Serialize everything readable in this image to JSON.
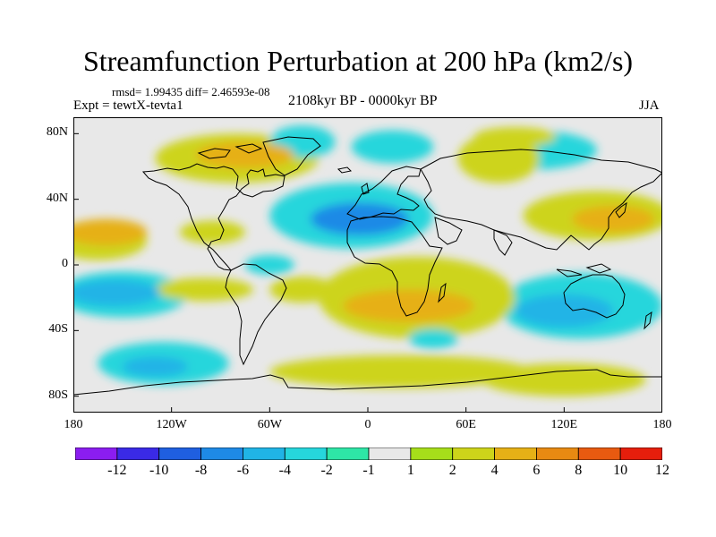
{
  "chart_data": {
    "type": "heatmap",
    "title": "Streamfunction Perturbation at 200 hPa (km2/s)",
    "stats": "rmsd= 1.99435 diff= 2.46593e-08",
    "experiment": "Expt = tewtX-tevta1",
    "period": "2108kyr BP - 0000kyr BP",
    "season": "JJA",
    "xlim": [
      -180,
      180
    ],
    "ylim": [
      -90,
      90
    ],
    "xticks": [
      {
        "value": -180,
        "label": "180"
      },
      {
        "value": -120,
        "label": "120W"
      },
      {
        "value": -60,
        "label": "60W"
      },
      {
        "value": 0,
        "label": "0"
      },
      {
        "value": 60,
        "label": "60E"
      },
      {
        "value": 120,
        "label": "120E"
      },
      {
        "value": 180,
        "label": "180"
      }
    ],
    "yticks": [
      {
        "value": 80,
        "label": "80N"
      },
      {
        "value": 40,
        "label": "40N"
      },
      {
        "value": 0,
        "label": "0"
      },
      {
        "value": -40,
        "label": "40S"
      },
      {
        "value": -80,
        "label": "80S"
      }
    ],
    "levels": [
      -12,
      -10,
      -8,
      -6,
      -4,
      -2,
      -1,
      1,
      2,
      4,
      6,
      8,
      10,
      12
    ],
    "level_labels": [
      "-12",
      "-10",
      "-8",
      "-6",
      "-4",
      "-2",
      "-1",
      "1",
      "2",
      "4",
      "6",
      "8",
      "10",
      "12"
    ],
    "colors": [
      "#8b1df0",
      "#3a2ae6",
      "#1f5fe0",
      "#1e8ae6",
      "#20b4e6",
      "#26d6dc",
      "#2ee6a6",
      "#e8e8e8",
      "#a6de1a",
      "#cdd41a",
      "#e6b016",
      "#e88a12",
      "#e85a10",
      "#e61e0c"
    ],
    "features": [
      {
        "lon": -160,
        "lat": 20,
        "rx": 25,
        "ry": 8,
        "value": 5
      },
      {
        "lon": -165,
        "lat": 15,
        "rx": 30,
        "ry": 12,
        "value": 2.5
      },
      {
        "lon": -155,
        "lat": -17,
        "rx": 28,
        "ry": 8,
        "value": -5
      },
      {
        "lon": -150,
        "lat": -18,
        "rx": 40,
        "ry": 14,
        "value": -2.5
      },
      {
        "lon": -125,
        "lat": -60,
        "rx": 40,
        "ry": 13,
        "value": -2.5
      },
      {
        "lon": -130,
        "lat": -62,
        "rx": 20,
        "ry": 6,
        "value": -5
      },
      {
        "lon": -80,
        "lat": 65,
        "rx": 50,
        "ry": 15,
        "value": 2.5
      },
      {
        "lon": -75,
        "lat": 67,
        "rx": 30,
        "ry": 8,
        "value": 5
      },
      {
        "lon": -95,
        "lat": 20,
        "rx": 20,
        "ry": 7,
        "value": 2.5
      },
      {
        "lon": -60,
        "lat": 0,
        "rx": 15,
        "ry": 6,
        "value": -2.5
      },
      {
        "lon": -100,
        "lat": -15,
        "rx": 30,
        "ry": 7,
        "value": 2.5
      },
      {
        "lon": -10,
        "lat": 30,
        "rx": 50,
        "ry": 20,
        "value": -3
      },
      {
        "lon": -5,
        "lat": 28,
        "rx": 30,
        "ry": 10,
        "value": -7
      },
      {
        "lon": -40,
        "lat": 75,
        "rx": 20,
        "ry": 10,
        "value": -2.5
      },
      {
        "lon": 15,
        "lat": 72,
        "rx": 25,
        "ry": 10,
        "value": -2.5
      },
      {
        "lon": 100,
        "lat": 70,
        "rx": 40,
        "ry": 12,
        "value": -2.5
      },
      {
        "lon": 80,
        "lat": 65,
        "rx": 25,
        "ry": 15,
        "value": 2.5
      },
      {
        "lon": 90,
        "lat": 78,
        "rx": 25,
        "ry": 6,
        "value": 2.5
      },
      {
        "lon": 140,
        "lat": 30,
        "rx": 45,
        "ry": 15,
        "value": 2.5
      },
      {
        "lon": 150,
        "lat": 28,
        "rx": 25,
        "ry": 8,
        "value": 5
      },
      {
        "lon": 130,
        "lat": -25,
        "rx": 50,
        "ry": 20,
        "value": -2.5
      },
      {
        "lon": 120,
        "lat": -28,
        "rx": 30,
        "ry": 10,
        "value": -5
      },
      {
        "lon": 30,
        "lat": -20,
        "rx": 60,
        "ry": 25,
        "value": 2.5
      },
      {
        "lon": 25,
        "lat": -25,
        "rx": 40,
        "ry": 10,
        "value": 5
      },
      {
        "lon": 40,
        "lat": -45,
        "rx": 15,
        "ry": 6,
        "value": -2.5
      },
      {
        "lon": 20,
        "lat": -65,
        "rx": 80,
        "ry": 10,
        "value": 2.5
      },
      {
        "lon": 120,
        "lat": -70,
        "rx": 50,
        "ry": 10,
        "value": 2.5
      },
      {
        "lon": -40,
        "lat": -15,
        "rx": 20,
        "ry": 8,
        "value": 2.5
      }
    ]
  }
}
